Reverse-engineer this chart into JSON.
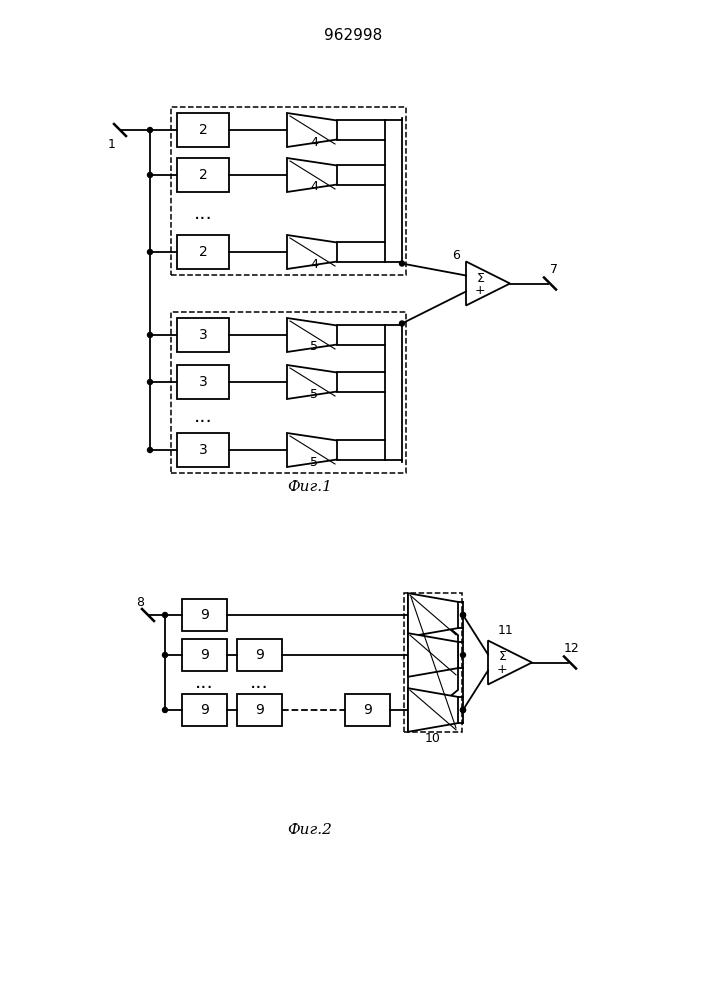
{
  "title": "962998",
  "fig1_caption": "Фиг.1",
  "fig2_caption": "Фиг.2",
  "bg_color": "#ffffff",
  "lw": 1.3,
  "lw_thin": 0.8
}
